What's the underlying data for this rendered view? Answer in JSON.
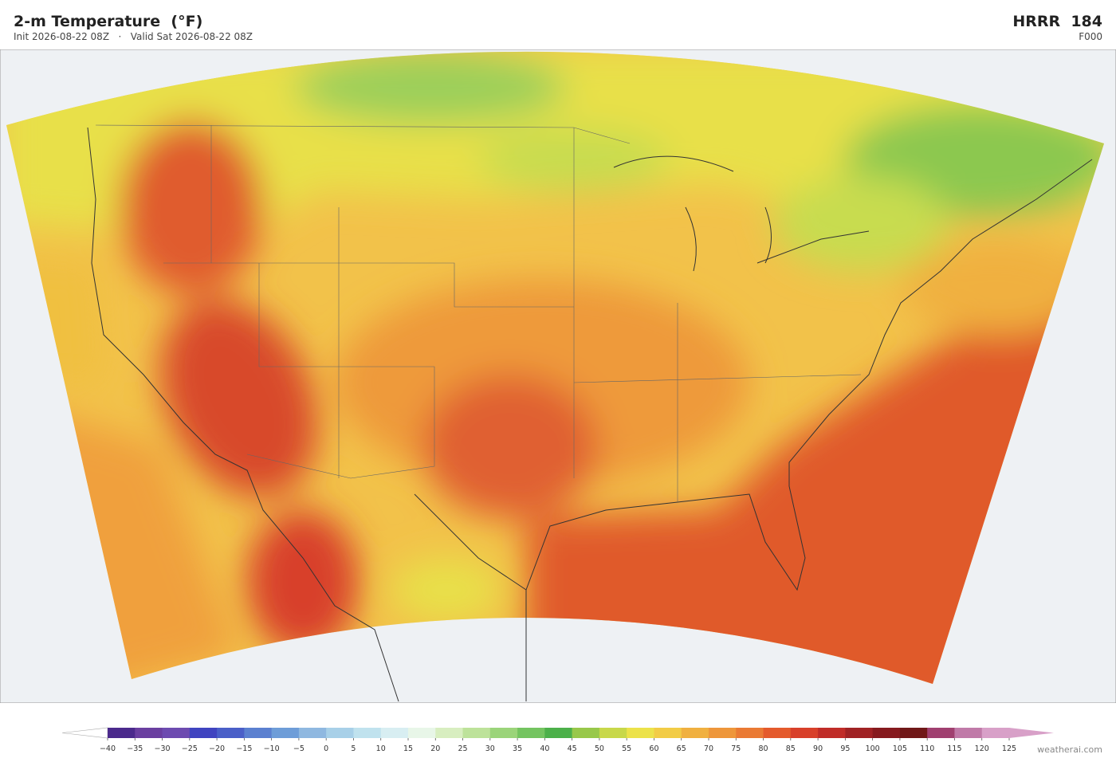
{
  "header": {
    "title": "2-m Temperature  (°F)",
    "subtitle": "Init 2026-08-22 08Z   ·   Valid Sat 2026-08-22 08Z",
    "model": "HRRR  184",
    "forecast_hour": "F000"
  },
  "colorbar": {
    "ticks": [
      {
        "value": -40,
        "label": "−40"
      },
      {
        "value": -35,
        "label": "−35"
      },
      {
        "value": -30,
        "label": "−30"
      },
      {
        "value": -25,
        "label": "−25"
      },
      {
        "value": -20,
        "label": "−20"
      },
      {
        "value": -15,
        "label": "−15"
      },
      {
        "value": -10,
        "label": "−10"
      },
      {
        "value": -5,
        "label": "−5"
      },
      0,
      5,
      10,
      15,
      20,
      25,
      30,
      35,
      40,
      45,
      50,
      55,
      60,
      65,
      70,
      75,
      80,
      85,
      90,
      95,
      100,
      105,
      110,
      115,
      120,
      125
    ],
    "colors": [
      "#4b2a8c",
      "#6a3fa0",
      "#6d4bb0",
      "#4044c0",
      "#4a5fc8",
      "#5b80d0",
      "#6e9dd8",
      "#8fb8e0",
      "#a8d0e8",
      "#c0e2ee",
      "#d8eef2",
      "#e8f6e8",
      "#d8eec0",
      "#bde29a",
      "#9bd47a",
      "#74c460",
      "#4cb04a",
      "#98c84a",
      "#c8d84a",
      "#ece24a",
      "#f2cc46",
      "#f0b040",
      "#ee963a",
      "#ea7a34",
      "#e45a2c",
      "#d8402a",
      "#c02c28",
      "#a02224",
      "#861a1e",
      "#701818",
      "#a04070",
      "#c07aa8",
      "#d8a0c8"
    ],
    "under_color": "#ffffff",
    "over_color": "#d8a0c8"
  },
  "credit": "weatherai.com"
}
